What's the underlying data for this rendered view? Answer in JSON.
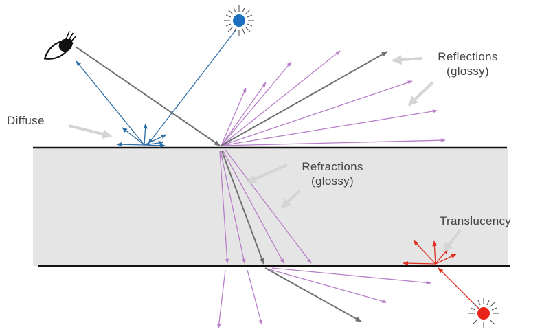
{
  "labels": {
    "diffuse": "Diffuse",
    "reflections_line1": "Reflections",
    "reflections_line2": "(glossy)",
    "refractions_line1": "Refractions",
    "refractions_line2": "(glossy)",
    "translucency": "Translucency"
  },
  "colors": {
    "surface_line": "#111111",
    "slab_fill": "#e5e5e5",
    "main_ray": "#707070",
    "diffuse_ray": "#2f6fa8",
    "glossy_ray": "#b77fc8",
    "translucent_ray": "#e03020",
    "pointer_arrow": "#d4d4d4",
    "blue_light": "#1e6fc0",
    "red_light": "#e8231a"
  },
  "icons": {
    "eye": "eye-icon",
    "blue_light": "light-source-icon",
    "red_light": "light-source-icon"
  }
}
